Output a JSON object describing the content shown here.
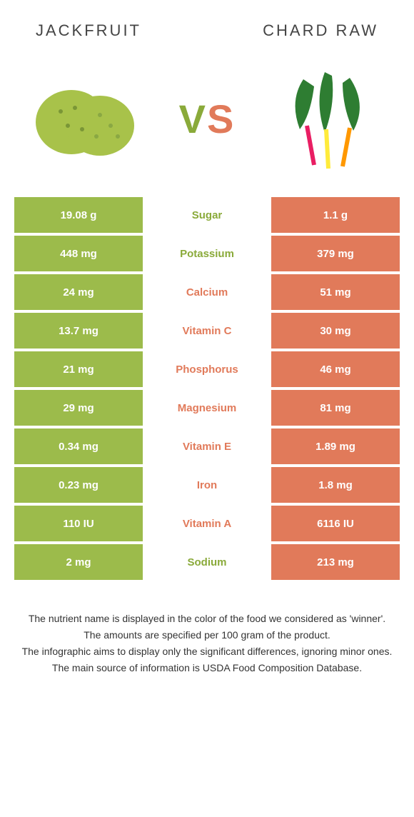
{
  "colors": {
    "left": "#9cbb4b",
    "right": "#e17a5a",
    "left_text": "#8aaa3a",
    "right_text": "#e17a5a"
  },
  "header": {
    "left_title": "Jackfruit",
    "right_title": "chard raw"
  },
  "vs": {
    "v": "V",
    "s": "S"
  },
  "rows": [
    {
      "left": "19.08 g",
      "label": "Sugar",
      "right": "1.1 g",
      "winner": "left"
    },
    {
      "left": "448 mg",
      "label": "Potassium",
      "right": "379 mg",
      "winner": "left"
    },
    {
      "left": "24 mg",
      "label": "Calcium",
      "right": "51 mg",
      "winner": "right"
    },
    {
      "left": "13.7 mg",
      "label": "Vitamin C",
      "right": "30 mg",
      "winner": "right"
    },
    {
      "left": "21 mg",
      "label": "Phosphorus",
      "right": "46 mg",
      "winner": "right"
    },
    {
      "left": "29 mg",
      "label": "Magnesium",
      "right": "81 mg",
      "winner": "right"
    },
    {
      "left": "0.34 mg",
      "label": "Vitamin E",
      "right": "1.89 mg",
      "winner": "right"
    },
    {
      "left": "0.23 mg",
      "label": "Iron",
      "right": "1.8 mg",
      "winner": "right"
    },
    {
      "left": "110 IU",
      "label": "Vitamin A",
      "right": "6116 IU",
      "winner": "right"
    },
    {
      "left": "2 mg",
      "label": "Sodium",
      "right": "213 mg",
      "winner": "left"
    }
  ],
  "footnotes": [
    "The nutrient name is displayed in the color of the food we considered as 'winner'.",
    "The amounts are specified per 100 gram of the product.",
    "The infographic aims to display only the significant differences, ignoring minor ones.",
    "The main source of information is USDA Food Composition Database."
  ]
}
